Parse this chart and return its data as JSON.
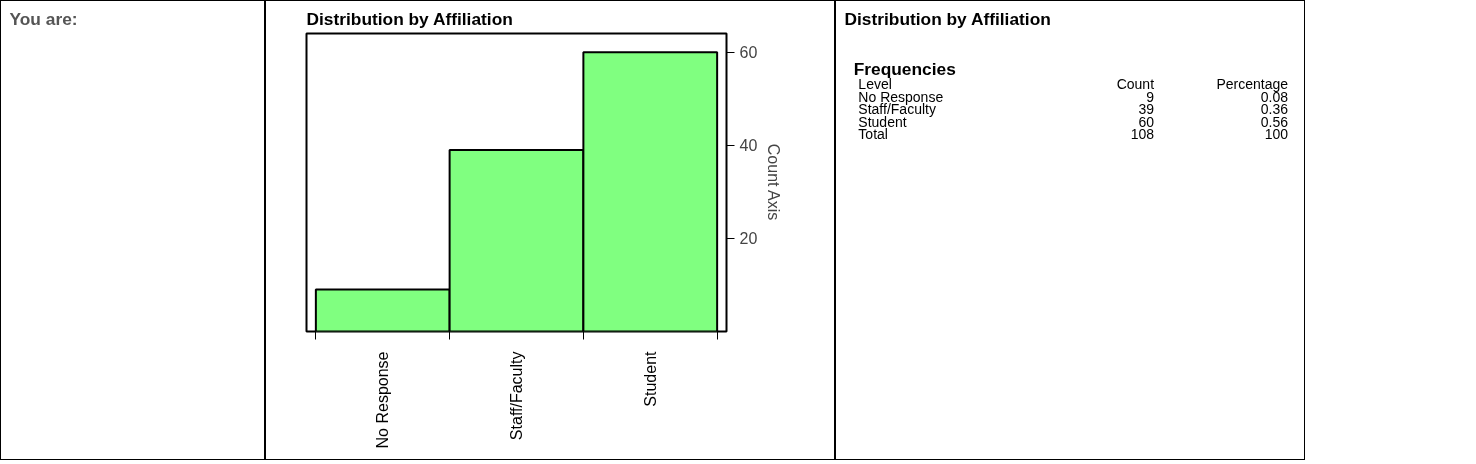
{
  "chart_data": [
    {
      "type": "other",
      "title": "You are:"
    },
    {
      "type": "bar",
      "title": "Distribution by Affiliation",
      "ylabel": "Count Axis",
      "categories": [
        "No Response",
        "Staff/Faculty",
        "Student"
      ],
      "values": [
        9,
        39,
        60
      ],
      "color": "#80ff80",
      "ylim": [
        0,
        64
      ],
      "yticks": [
        20,
        40,
        60
      ],
      "grid": false
    },
    {
      "type": "other",
      "title": "Distribution by Affiliation",
      "subtitle": "Frequencies",
      "annotations": [
        "Level",
        "Count",
        "Percentage",
        "No Response",
        "9",
        "0.08",
        "Staff/Faculty",
        "39",
        "0.36",
        "Student",
        "60",
        "0.56",
        "Total",
        "108",
        "100"
      ]
    }
  ]
}
